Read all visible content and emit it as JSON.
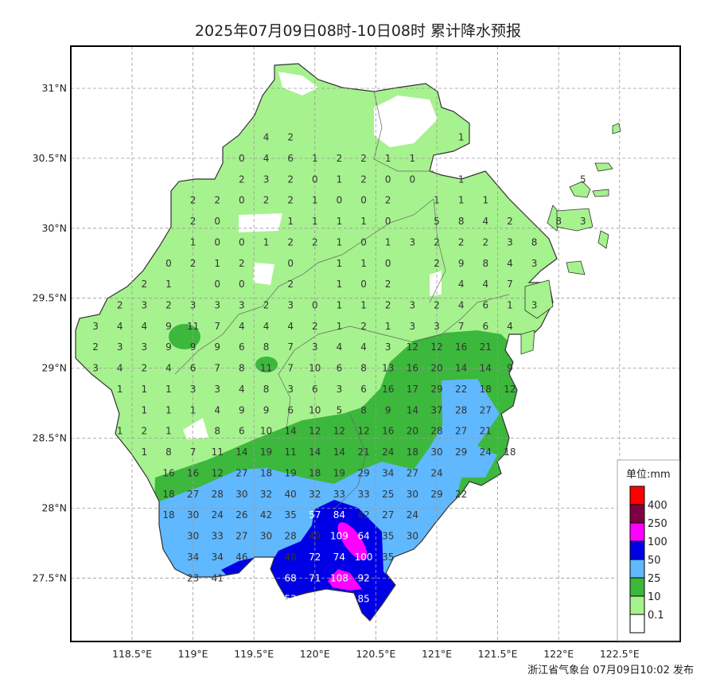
{
  "title": "2025年07月09日08时-10日08时 累计降水预报",
  "footer": "浙江省气象台 07月09日10:02 发布",
  "axes": {
    "lon_ticks": [
      {
        "value": 118.5,
        "label": "118.5°E"
      },
      {
        "value": 119,
        "label": "119°E"
      },
      {
        "value": 119.5,
        "label": "119.5°E"
      },
      {
        "value": 120,
        "label": "120°E"
      },
      {
        "value": 120.5,
        "label": "120.5°E"
      },
      {
        "value": 121,
        "label": "121°E"
      },
      {
        "value": 121.5,
        "label": "121.5°E"
      },
      {
        "value": 122,
        "label": "122°E"
      },
      {
        "value": 122.5,
        "label": "122.5°E"
      }
    ],
    "lat_ticks": [
      {
        "value": 31,
        "label": "31°N"
      },
      {
        "value": 30.5,
        "label": "30.5°N"
      },
      {
        "value": 30,
        "label": "30°N"
      },
      {
        "value": 29.5,
        "label": "29.5°N"
      },
      {
        "value": 29,
        "label": "29°N"
      },
      {
        "value": 28.5,
        "label": "28.5°N"
      },
      {
        "value": 28,
        "label": "28°N"
      },
      {
        "value": 27.5,
        "label": "27.5°N"
      }
    ],
    "grid": true
  },
  "legend": {
    "title": "单位:mm",
    "levels": [
      {
        "label": "",
        "color": "#ff0000"
      },
      {
        "label": "400",
        "color": "#7f0040"
      },
      {
        "label": "250",
        "color": "#ff00ff"
      },
      {
        "label": "100",
        "color": "#0000e6"
      },
      {
        "label": "50",
        "color": "#60b8ff"
      },
      {
        "label": "25",
        "color": "#3cb83c"
      },
      {
        "label": "10",
        "color": "#a6f28e"
      },
      {
        "label": "0.1",
        "color": "#ffffff"
      }
    ]
  },
  "colors": {
    "light_green": "#a6f28e",
    "green": "#3cb83c",
    "light_blue": "#60b8ff",
    "blue": "#0000e6",
    "magenta": "#ff00ff",
    "boundary": "#333333"
  },
  "stations": {
    "lon_start": 118.2,
    "lon_step": 0.2,
    "rows": [
      {
        "lat": 30.65,
        "cells": [
          null,
          null,
          null,
          null,
          null,
          null,
          null,
          4,
          2,
          null,
          null,
          null,
          null,
          null,
          null,
          1
        ]
      },
      {
        "lat": 30.5,
        "cells": [
          null,
          null,
          null,
          null,
          null,
          null,
          0,
          4,
          6,
          1,
          2,
          2,
          1,
          1
        ]
      },
      {
        "lat": 30.35,
        "cells": [
          null,
          null,
          null,
          null,
          null,
          null,
          2,
          3,
          2,
          0,
          1,
          2,
          0,
          0,
          null,
          1,
          null,
          null,
          null,
          null,
          5
        ]
      },
      {
        "lat": 30.2,
        "cells": [
          null,
          null,
          null,
          null,
          2,
          2,
          0,
          2,
          2,
          1,
          0,
          0,
          2,
          null,
          1,
          1,
          1
        ]
      },
      {
        "lat": 30.05,
        "cells": [
          null,
          null,
          null,
          null,
          2,
          0,
          null,
          null,
          1,
          1,
          1,
          1,
          0,
          null,
          5,
          8,
          4,
          2,
          null,
          8,
          3
        ]
      },
      {
        "lat": 29.9,
        "cells": [
          null,
          null,
          null,
          null,
          1,
          0,
          0,
          1,
          2,
          2,
          1,
          0,
          1,
          3,
          2,
          2,
          2,
          3,
          8
        ]
      },
      {
        "lat": 29.75,
        "cells": [
          null,
          null,
          null,
          0,
          2,
          1,
          2,
          null,
          0,
          null,
          1,
          1,
          0,
          null,
          2,
          9,
          8,
          4,
          3
        ]
      },
      {
        "lat": 29.6,
        "cells": [
          null,
          null,
          2,
          1,
          null,
          0,
          0,
          null,
          2,
          null,
          1,
          0,
          2,
          null,
          null,
          4,
          4,
          7
        ]
      },
      {
        "lat": 29.45,
        "cells": [
          null,
          2,
          3,
          2,
          3,
          3,
          3,
          2,
          3,
          0,
          1,
          1,
          2,
          3,
          2,
          4,
          6,
          1,
          3
        ]
      },
      {
        "lat": 29.3,
        "cells": [
          3,
          4,
          4,
          9,
          11,
          7,
          4,
          4,
          4,
          2,
          1,
          2,
          1,
          3,
          3,
          7,
          6,
          4
        ]
      },
      {
        "lat": 29.15,
        "cells": [
          2,
          3,
          3,
          9,
          9,
          9,
          6,
          8,
          7,
          3,
          4,
          4,
          3,
          12,
          12,
          16,
          21
        ]
      },
      {
        "lat": 29.0,
        "cells": [
          3,
          4,
          2,
          4,
          6,
          7,
          8,
          11,
          7,
          10,
          6,
          8,
          13,
          16,
          20,
          14,
          14,
          9
        ]
      },
      {
        "lat": 28.85,
        "cells": [
          null,
          1,
          1,
          1,
          3,
          3,
          4,
          8,
          3,
          6,
          3,
          6,
          16,
          17,
          29,
          22,
          18,
          12
        ]
      },
      {
        "lat": 28.7,
        "cells": [
          null,
          null,
          1,
          1,
          1,
          4,
          9,
          9,
          6,
          10,
          5,
          8,
          9,
          14,
          37,
          28,
          27
        ]
      },
      {
        "lat": 28.55,
        "cells": [
          null,
          1,
          2,
          1,
          null,
          8,
          6,
          10,
          14,
          12,
          12,
          12,
          16,
          20,
          28,
          27,
          21
        ]
      },
      {
        "lat": 28.4,
        "cells": [
          null,
          null,
          1,
          8,
          7,
          11,
          14,
          19,
          11,
          14,
          14,
          21,
          24,
          18,
          30,
          29,
          24,
          18
        ]
      },
      {
        "lat": 28.25,
        "cells": [
          null,
          null,
          null,
          16,
          16,
          12,
          27,
          18,
          19,
          18,
          19,
          29,
          34,
          27,
          24
        ]
      },
      {
        "lat": 28.1,
        "cells": [
          null,
          null,
          null,
          18,
          27,
          28,
          30,
          32,
          40,
          32,
          33,
          33,
          25,
          30,
          29,
          22
        ]
      },
      {
        "lat": 27.95,
        "cells": [
          null,
          null,
          null,
          18,
          30,
          24,
          26,
          42,
          35,
          57,
          84,
          42,
          27,
          24
        ]
      },
      {
        "lat": 27.8,
        "cells": [
          null,
          null,
          null,
          null,
          30,
          33,
          27,
          30,
          28,
          49,
          109,
          64,
          35,
          30
        ]
      },
      {
        "lat": 27.65,
        "cells": [
          null,
          null,
          null,
          null,
          34,
          34,
          46,
          null,
          48,
          72,
          74,
          100,
          35
        ]
      },
      {
        "lat": 27.5,
        "cells": [
          null,
          null,
          null,
          null,
          23,
          41,
          null,
          null,
          68,
          71,
          108,
          92
        ]
      },
      {
        "lat": 27.35,
        "cells": [
          null,
          null,
          null,
          null,
          null,
          null,
          null,
          null,
          53,
          null,
          null,
          85
        ]
      }
    ]
  }
}
